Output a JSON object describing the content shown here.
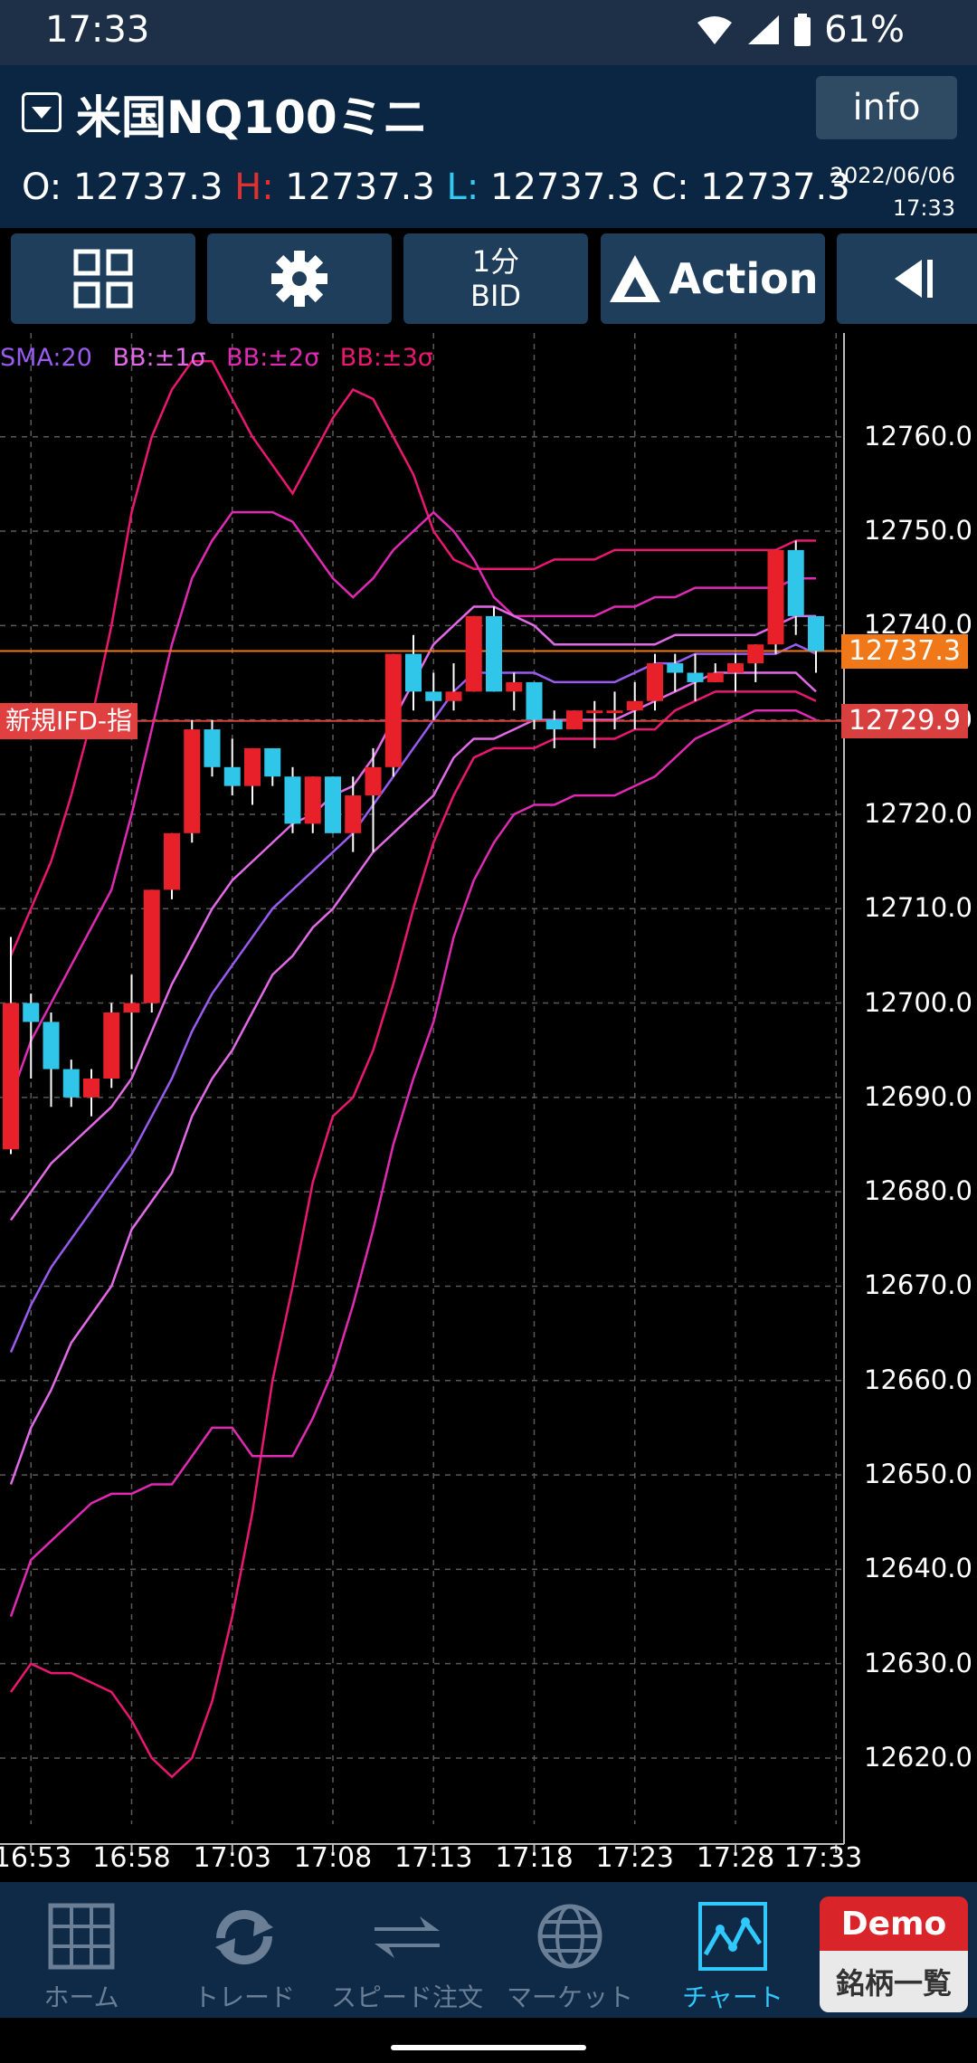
{
  "status": {
    "time": "17:33",
    "battery": "61%"
  },
  "header": {
    "symbol": "米国NQ100ミニ",
    "info_label": "info",
    "ohlc": {
      "o_label": "O:",
      "o": "12737.3",
      "h_label": "H:",
      "h": "12737.3",
      "l_label": "L:",
      "l": "12737.3",
      "c_label": "C:",
      "c": "12737.3"
    },
    "date": "2022/06/06",
    "time": "17:33"
  },
  "toolbar": {
    "timeframe": "1分",
    "price_side": "BID",
    "action_label": "Action"
  },
  "legend": {
    "sma": "SMA:20",
    "bb1": "BB:±1σ",
    "bb2": "BB:±2σ",
    "bb3": "BB:±3σ"
  },
  "price_tags": {
    "current": "12737.3",
    "order": "12729.9",
    "order_label": "新規IFD-指"
  },
  "colors": {
    "up": "#e8202a",
    "down": "#2fc6ea",
    "sma": "#9a5cf0",
    "bb1": "#e26ae6",
    "bb2": "#e02ab4",
    "bb3": "#ea1870",
    "current_line": "#f07818",
    "order_line": "#d84040"
  },
  "nav": {
    "items": [
      {
        "label": "ホーム",
        "icon": "home-grid-icon"
      },
      {
        "label": "トレード",
        "icon": "trade-arrows-icon"
      },
      {
        "label": "スピード注文",
        "icon": "speed-order-icon"
      },
      {
        "label": "マーケット",
        "icon": "globe-icon"
      },
      {
        "label": "チャート",
        "icon": "chart-icon"
      }
    ],
    "demo_label": "Demo",
    "symbol_list_label": "銘柄一覧"
  },
  "chart_data": {
    "type": "candlestick",
    "interval": "1分",
    "y_ticks": [
      "12760.0",
      "12750.0",
      "12740.0",
      "12730.0",
      "12720.0",
      "12710.0",
      "12700.0",
      "12690.0",
      "12680.0",
      "12670.0",
      "12660.0",
      "12650.0",
      "12640.0",
      "12630.0",
      "12620.0"
    ],
    "ylim": [
      12613,
      12771
    ],
    "x_ticks": [
      "16:53",
      "16:58",
      "17:03",
      "17:08",
      "17:13",
      "17:18",
      "17:23",
      "17:28",
      "17:33"
    ],
    "candles": [
      {
        "o": 12684.5,
        "h": 12707,
        "l": 12684,
        "c": 12700
      },
      {
        "o": 12700,
        "h": 12701,
        "l": 12692,
        "c": 12698
      },
      {
        "o": 12698,
        "h": 12699,
        "l": 12689,
        "c": 12693
      },
      {
        "o": 12693,
        "h": 12694,
        "l": 12689,
        "c": 12690
      },
      {
        "o": 12690,
        "h": 12693,
        "l": 12688,
        "c": 12692
      },
      {
        "o": 12692,
        "h": 12700,
        "l": 12691,
        "c": 12699
      },
      {
        "o": 12699,
        "h": 12703,
        "l": 12693,
        "c": 12700
      },
      {
        "o": 12700,
        "h": 12712,
        "l": 12699,
        "c": 12712
      },
      {
        "o": 12712,
        "h": 12718,
        "l": 12711,
        "c": 12718
      },
      {
        "o": 12718,
        "h": 12730,
        "l": 12717,
        "c": 12729
      },
      {
        "o": 12729,
        "h": 12730,
        "l": 12724,
        "c": 12725
      },
      {
        "o": 12725,
        "h": 12728,
        "l": 12722,
        "c": 12723
      },
      {
        "o": 12723,
        "h": 12727,
        "l": 12721,
        "c": 12727
      },
      {
        "o": 12727,
        "h": 12727,
        "l": 12723,
        "c": 12724
      },
      {
        "o": 12724,
        "h": 12725,
        "l": 12718,
        "c": 12719
      },
      {
        "o": 12719,
        "h": 12724,
        "l": 12718,
        "c": 12724
      },
      {
        "o": 12724,
        "h": 12724,
        "l": 12718,
        "c": 12718
      },
      {
        "o": 12718,
        "h": 12724,
        "l": 12716,
        "c": 12722
      },
      {
        "o": 12722,
        "h": 12727,
        "l": 12716,
        "c": 12725
      },
      {
        "o": 12725,
        "h": 12737,
        "l": 12724,
        "c": 12737
      },
      {
        "o": 12737,
        "h": 12739,
        "l": 12731,
        "c": 12733
      },
      {
        "o": 12733,
        "h": 12735,
        "l": 12730,
        "c": 12732
      },
      {
        "o": 12732,
        "h": 12736,
        "l": 12731,
        "c": 12733
      },
      {
        "o": 12733,
        "h": 12741,
        "l": 12733,
        "c": 12741
      },
      {
        "o": 12741,
        "h": 12742,
        "l": 12733,
        "c": 12733
      },
      {
        "o": 12733,
        "h": 12735,
        "l": 12731,
        "c": 12734
      },
      {
        "o": 12734,
        "h": 12734,
        "l": 12729,
        "c": 12730
      },
      {
        "o": 12730,
        "h": 12731,
        "l": 12727,
        "c": 12729
      },
      {
        "o": 12729,
        "h": 12731,
        "l": 12729,
        "c": 12731
      },
      {
        "o": 12731,
        "h": 12732,
        "l": 12727,
        "c": 12731
      },
      {
        "o": 12731,
        "h": 12733,
        "l": 12729,
        "c": 12731
      },
      {
        "o": 12731,
        "h": 12734,
        "l": 12729,
        "c": 12732
      },
      {
        "o": 12732,
        "h": 12737,
        "l": 12731,
        "c": 12736
      },
      {
        "o": 12736,
        "h": 12737,
        "l": 12733,
        "c": 12735
      },
      {
        "o": 12735,
        "h": 12737,
        "l": 12732,
        "c": 12734
      },
      {
        "o": 12734,
        "h": 12736,
        "l": 12734,
        "c": 12735
      },
      {
        "o": 12735,
        "h": 12737,
        "l": 12733,
        "c": 12736
      },
      {
        "o": 12736,
        "h": 12738,
        "l": 12734,
        "c": 12738
      },
      {
        "o": 12738,
        "h": 12748,
        "l": 12737,
        "c": 12748
      },
      {
        "o": 12748,
        "h": 12749,
        "l": 12739,
        "c": 12741
      },
      {
        "o": 12741,
        "h": 12741,
        "l": 12735,
        "c": 12737.3
      }
    ],
    "sma": [
      12663,
      12668,
      12672,
      12675,
      12678,
      12681,
      12684,
      12688,
      12692,
      12697,
      12701,
      12704,
      12707,
      12710,
      12712,
      12714,
      12716,
      12718,
      12721,
      12724,
      12727,
      12730,
      12733,
      12735,
      12735,
      12735,
      12735,
      12734,
      12734,
      12734,
      12734,
      12735,
      12736,
      12736,
      12737,
      12737,
      12737,
      12737,
      12737,
      12738,
      12737
    ],
    "bb_plus1": [
      12677,
      12680,
      12683,
      12685,
      12687,
      12689,
      12692,
      12697,
      12702,
      12706,
      12710,
      12713,
      12715,
      12717,
      12719,
      12720,
      12722,
      12723,
      12726,
      12730,
      12734,
      12738,
      12740,
      12742,
      12742,
      12741,
      12740,
      12738,
      12738,
      12738,
      12738,
      12738,
      12738,
      12739,
      12739,
      12739,
      12739,
      12739,
      12740,
      12741,
      12741
    ],
    "bb_minus1": [
      12649,
      12655,
      12659,
      12664,
      12667,
      12670,
      12676,
      12679,
      12682,
      12688,
      12692,
      12695,
      12699,
      12703,
      12705,
      12708,
      12710,
      12713,
      12716,
      12718,
      12720,
      12722,
      12726,
      12728,
      12728,
      12729,
      12730,
      12730,
      12730,
      12730,
      12730,
      12731,
      12732,
      12733,
      12734,
      12735,
      12735,
      12735,
      12735,
      12735,
      12733
    ],
    "bb_plus2": [
      12690,
      12696,
      12700,
      12704,
      12708,
      12712,
      12720,
      12729,
      12738,
      12745,
      12749,
      12752,
      12752,
      12752,
      12751,
      12748,
      12745,
      12743,
      12745,
      12748,
      12750,
      12752,
      12750,
      12747,
      12743,
      12741,
      12741,
      12741,
      12741,
      12741,
      12742,
      12742,
      12743,
      12743,
      12744,
      12744,
      12744,
      12744,
      12744,
      12745,
      12745
    ],
    "bb_minus2": [
      12635,
      12641,
      12643,
      12645,
      12647,
      12648,
      12648,
      12649,
      12649,
      12652,
      12655,
      12655,
      12652,
      12652,
      12652,
      12656,
      12661,
      12668,
      12676,
      12685,
      12692,
      12698,
      12707,
      12713,
      12717,
      12720,
      12721,
      12721,
      12722,
      12722,
      12722,
      12723,
      12724,
      12726,
      12728,
      12729,
      12730,
      12731,
      12731,
      12731,
      12730
    ],
    "bb_plus3": [
      12705,
      12710,
      12715,
      12722,
      12730,
      12740,
      12752,
      12760,
      12765,
      12768,
      12768,
      12764,
      12760,
      12757,
      12754,
      12758,
      12762,
      12765,
      12764,
      12760,
      12756,
      12750,
      12747,
      12746,
      12746,
      12746,
      12746,
      12747,
      12747,
      12747,
      12748,
      12748,
      12748,
      12748,
      12748,
      12748,
      12748,
      12748,
      12748,
      12749,
      12749
    ],
    "bb_minus3": [
      12627,
      12630,
      12629,
      12629,
      12628,
      12627,
      12624,
      12620,
      12618,
      12620,
      12626,
      12635,
      12646,
      12660,
      12670,
      12681,
      12688,
      12690,
      12695,
      12702,
      12710,
      12717,
      12722,
      12726,
      12727,
      12727,
      12727,
      12728,
      12728,
      12728,
      12728,
      12729,
      12729,
      12731,
      12732,
      12733,
      12733,
      12733,
      12733,
      12733,
      12732
    ],
    "current_price": 12737.3,
    "order_price": 12729.9
  }
}
